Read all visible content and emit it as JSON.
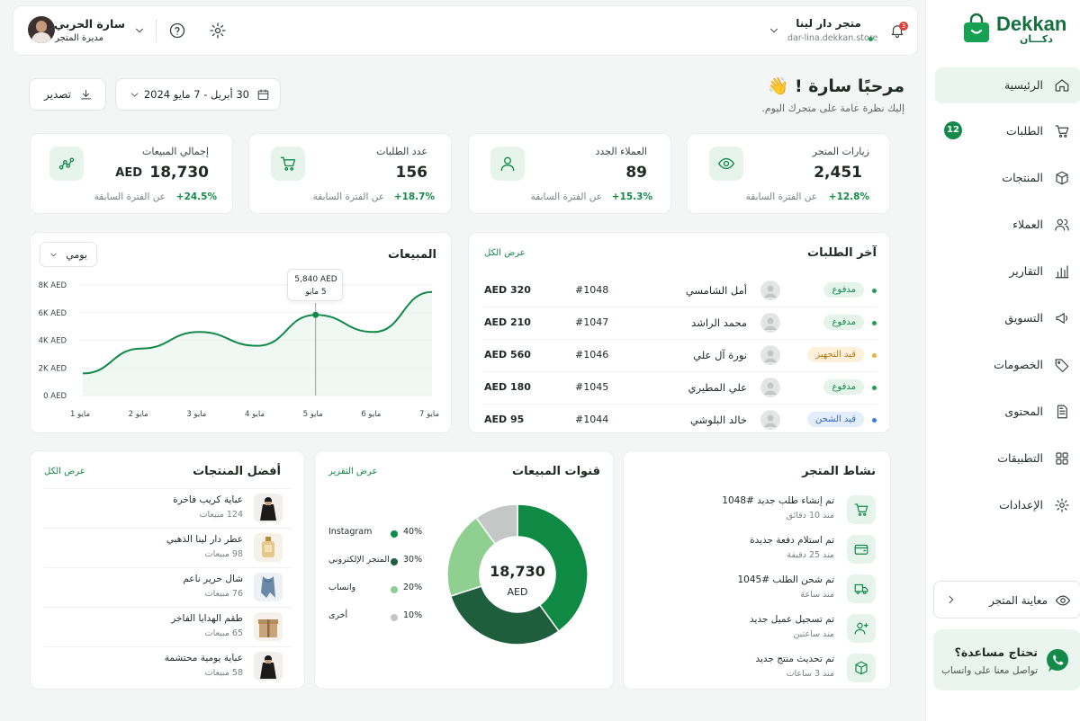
{
  "brand": {
    "name": "Dekkan",
    "sub": "دكـــان"
  },
  "user": {
    "name": "سارة الحربي",
    "role": "مديرة المتجر"
  },
  "store": {
    "name": "متجر دار لينا",
    "domain": "dar-lina.dekkan.store"
  },
  "notifications_count": "3",
  "sidebar": {
    "items": [
      {
        "label": "الرئيسية",
        "icon": "home-icon"
      },
      {
        "label": "الطلبات",
        "icon": "cart-icon",
        "badge": "12"
      },
      {
        "label": "المنتجات",
        "icon": "box-icon"
      },
      {
        "label": "العملاء",
        "icon": "users-icon"
      },
      {
        "label": "التقارير",
        "icon": "bar-chart-icon"
      },
      {
        "label": "التسويق",
        "icon": "megaphone-icon"
      },
      {
        "label": "الخصومات",
        "icon": "tag-icon"
      },
      {
        "label": "المحتوى",
        "icon": "document-icon"
      },
      {
        "label": "التطبيقات",
        "icon": "grid-icon"
      },
      {
        "label": "الإعدادات",
        "icon": "gear-icon"
      }
    ],
    "preview_label": "معاينة المتجر",
    "help_title": "تحتاج مساعدة؟",
    "help_sub": "تواصل معنا على واتساب"
  },
  "welcome": {
    "title": "مرحبًا سارة ! 👋",
    "subtitle": "إليك نظرة عامة على متجرك اليوم."
  },
  "date_range": "30 أبريل - 7 مايو 2024",
  "export_label": "تصدير",
  "stats": [
    {
      "label": "زيارات المتجر",
      "value": "2,451",
      "change": "+12.8%",
      "period": "عن الفترة السابقة",
      "icon": "eye-icon"
    },
    {
      "label": "العملاء الجدد",
      "value": "89",
      "change": "+15.3%",
      "period": "عن الفترة السابقة",
      "icon": "user-icon"
    },
    {
      "label": "عدد الطلبات",
      "value": "156",
      "change": "+18.7%",
      "period": "عن الفترة السابقة",
      "icon": "cart-icon"
    },
    {
      "label": "إجمالي المبيعات",
      "value": "18,730",
      "currency": "AED",
      "change": "+24.5%",
      "period": "عن الفترة السابقة",
      "icon": "chart-flow-icon"
    }
  ],
  "sales_chart": {
    "title": "المبيعات",
    "period_select": "يومي",
    "tooltip_value": "5,840 AED",
    "tooltip_label": "5 مايو"
  },
  "chart_data": {
    "type": "line",
    "title": "المبيعات",
    "categories": [
      "1 مايو",
      "2 مايو",
      "3 مايو",
      "4 مايو",
      "5 مايو",
      "6 مايو",
      "7 مايو"
    ],
    "x_ticks": [
      "مايو 1",
      "مايو 2",
      "مايو 3",
      "مايو 4",
      "مايو 5",
      "مايو 6",
      "مايو 7"
    ],
    "y_ticks": [
      "0 AED",
      "2K AED",
      "4K AED",
      "6K AED",
      "8K AED"
    ],
    "values": [
      1600,
      3400,
      4600,
      3600,
      5840,
      4600,
      7500
    ],
    "ylim": [
      0,
      8000
    ],
    "highlight_index": 4,
    "color": "#138a4a"
  },
  "recent_orders": {
    "title": "آخر الطلبات",
    "view_all": "عرض الكل",
    "rows": [
      {
        "status": "مدفوع",
        "kind": "paid",
        "dot": "#1f9d55",
        "customer": "أمل الشامسي",
        "id": "#1048",
        "amount": "AED 320"
      },
      {
        "status": "مدفوع",
        "kind": "paid",
        "dot": "#1f9d55",
        "customer": "محمد الراشد",
        "id": "#1047",
        "amount": "AED 210"
      },
      {
        "status": "قيد التجهيز",
        "kind": "prep",
        "dot": "#e8b23a",
        "customer": "نورة آل علي",
        "id": "#1046",
        "amount": "AED 560"
      },
      {
        "status": "مدفوع",
        "kind": "paid",
        "dot": "#1f9d55",
        "customer": "علي المطيري",
        "id": "#1045",
        "amount": "AED 180"
      },
      {
        "status": "قيد الشحن",
        "kind": "ship",
        "dot": "#3b7be0",
        "customer": "خالد البلوشي",
        "id": "#1044",
        "amount": "AED 95"
      }
    ]
  },
  "activity": {
    "title": "نشاط المتجر",
    "items": [
      {
        "text": "تم إنشاء طلب جديد #1048",
        "time": "منذ 10 دقائق",
        "icon": "cart-icon"
      },
      {
        "text": "تم استلام دفعة جديدة",
        "time": "منذ 25 دقيقة",
        "icon": "wallet-icon"
      },
      {
        "text": "تم شحن الطلب #1045",
        "time": "منذ ساعة",
        "icon": "truck-icon"
      },
      {
        "text": "تم تسجيل عميل جديد",
        "time": "منذ ساعتين",
        "icon": "user-plus-icon"
      },
      {
        "text": "تم تحديث منتج جديد",
        "time": "منذ 3 ساعات",
        "icon": "box-icon"
      }
    ]
  },
  "channels": {
    "title": "قنوات المبيعات",
    "view_report": "عرض التقرير",
    "total": "18,730",
    "currency": "AED",
    "items": [
      {
        "name": "Instagram",
        "pct": "40%",
        "value": 40,
        "color": "#0e8a45"
      },
      {
        "name": "المتجر الإلكتروني",
        "pct": "30%",
        "value": 30,
        "color": "#1e5e3c"
      },
      {
        "name": "واتساب",
        "pct": "20%",
        "value": 20,
        "color": "#8fcf8f"
      },
      {
        "name": "أخرى",
        "pct": "10%",
        "value": 10,
        "color": "#c4c7c6"
      }
    ]
  },
  "top_products": {
    "title": "أفضل المنتجات",
    "view_all": "عرض الكل",
    "items": [
      {
        "name": "عباية كريب فاخرة",
        "sales": "124 مبيعات",
        "thumb": "abaya"
      },
      {
        "name": "عطر دار لينا الذهبي",
        "sales": "98 مبيعات",
        "thumb": "perfume"
      },
      {
        "name": "شال حرير ناعم",
        "sales": "76 مبيعات",
        "thumb": "scarf"
      },
      {
        "name": "طقم الهدايا الفاخر",
        "sales": "65 مبيعات",
        "thumb": "gift"
      },
      {
        "name": "عباية يومية محتشمة",
        "sales": "58 مبيعات",
        "thumb": "abaya"
      }
    ]
  }
}
